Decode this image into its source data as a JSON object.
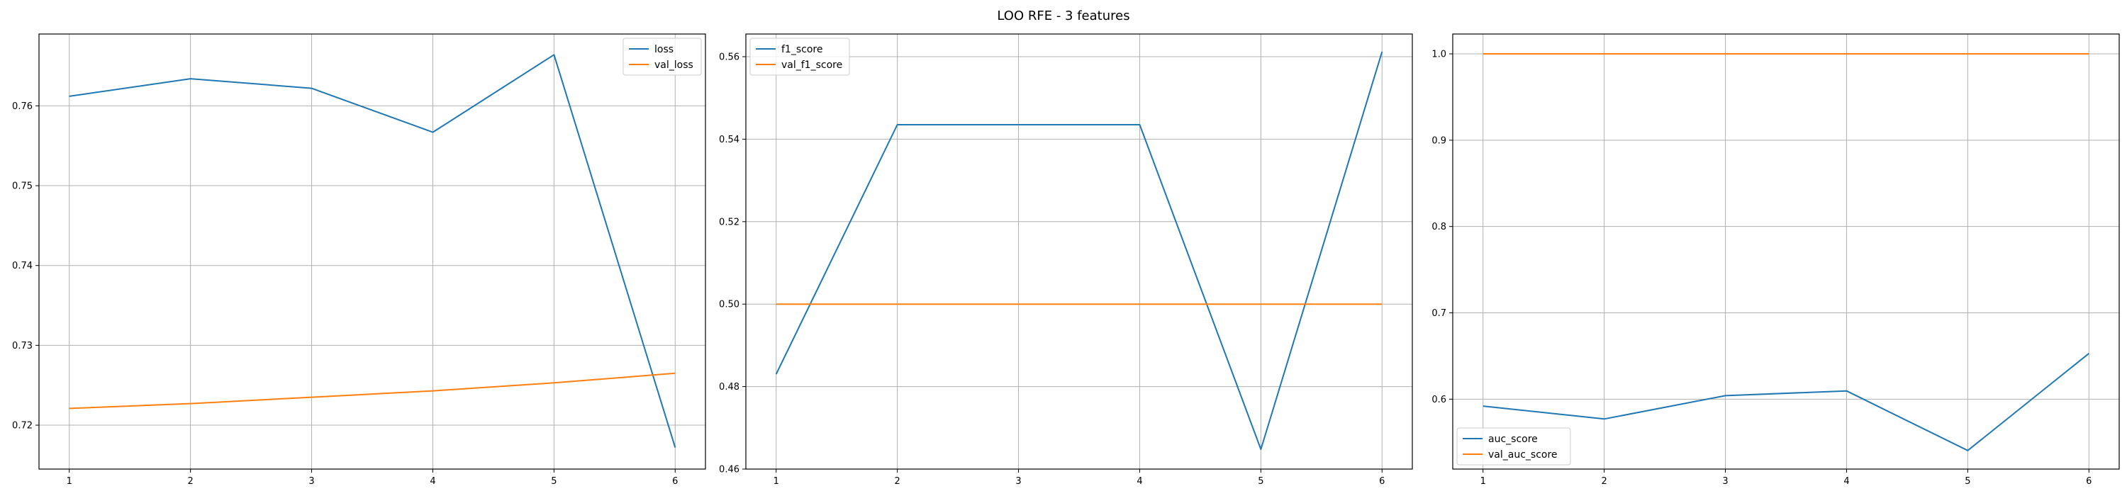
{
  "figure": {
    "title": "LOO RFE - 3 features"
  },
  "colors": {
    "train": "#1f77b4",
    "val": "#ff7f0e",
    "grid": "#b0b0b0",
    "axis": "#000000"
  },
  "chart_data": [
    {
      "type": "line",
      "title": "",
      "xlabel": "",
      "ylabel": "",
      "x": [
        1,
        2,
        3,
        4,
        5,
        6
      ],
      "xticks": [
        "1",
        "2",
        "3",
        "4",
        "5",
        "6"
      ],
      "ylim": [
        0.7145,
        0.769
      ],
      "yticks": [
        "0.72",
        "0.73",
        "0.74",
        "0.75",
        "0.76"
      ],
      "grid": true,
      "legend_position": "top-right",
      "series": [
        {
          "name": "loss",
          "values": [
            0.7612,
            0.7634,
            0.7622,
            0.7567,
            0.7664,
            0.7172
          ]
        },
        {
          "name": "val_loss",
          "values": [
            0.7221,
            0.7227,
            0.7235,
            0.7243,
            0.7253,
            0.7265
          ]
        }
      ]
    },
    {
      "type": "line",
      "title": "",
      "xlabel": "",
      "ylabel": "",
      "x": [
        1,
        2,
        3,
        4,
        5,
        6
      ],
      "xticks": [
        "1",
        "2",
        "3",
        "4",
        "5",
        "6"
      ],
      "ylim": [
        0.46,
        0.5655
      ],
      "yticks": [
        "0.46",
        "0.48",
        "0.50",
        "0.52",
        "0.54",
        "0.56"
      ],
      "grid": true,
      "legend_position": "top-left",
      "series": [
        {
          "name": "f1_score",
          "values": [
            0.483,
            0.5435,
            0.5435,
            0.5435,
            0.4648,
            0.5612
          ]
        },
        {
          "name": "val_f1_score",
          "values": [
            0.5,
            0.5,
            0.5,
            0.5,
            0.5,
            0.5
          ]
        }
      ]
    },
    {
      "type": "line",
      "title": "",
      "xlabel": "",
      "ylabel": "",
      "x": [
        1,
        2,
        3,
        4,
        5,
        6
      ],
      "xticks": [
        "1",
        "2",
        "3",
        "4",
        "5",
        "6"
      ],
      "ylim": [
        0.519,
        1.023
      ],
      "yticks": [
        "0.6",
        "0.7",
        "0.8",
        "0.9",
        "1.0"
      ],
      "grid": true,
      "legend_position": "bottom-left",
      "series": [
        {
          "name": "auc_score",
          "values": [
            0.592,
            0.577,
            0.604,
            0.6095,
            0.5405,
            0.653
          ]
        },
        {
          "name": "val_auc_score",
          "values": [
            1.0,
            1.0,
            1.0,
            1.0,
            1.0,
            1.0
          ]
        }
      ]
    }
  ]
}
